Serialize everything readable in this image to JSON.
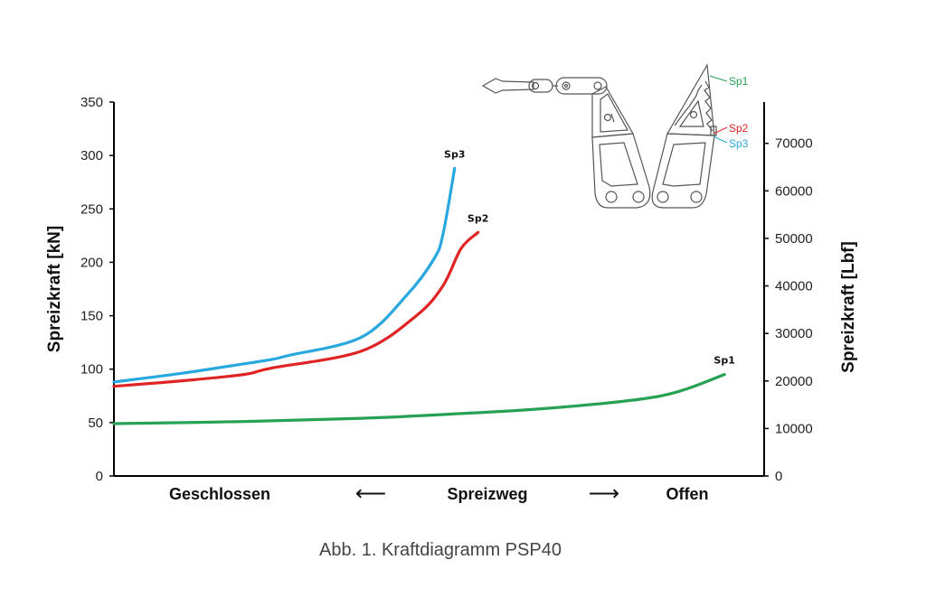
{
  "chart_data": {
    "type": "line",
    "title": "",
    "caption": "Abb. 1. Kraftdiagramm PSP40",
    "xlabel": "Spreizweg",
    "x_left_label": "Geschlossen",
    "x_right_label": "Offen",
    "x_arrow_left": "⟵",
    "x_arrow_right": "⟶",
    "x_scale_note": "normalized spreading path (0 = closed, 100 = open), no numeric ticks shown",
    "xlim": [
      0,
      100
    ],
    "ylabel": "Spreizkraft [kN]",
    "ylim": [
      0,
      350
    ],
    "yticks": [
      0,
      50,
      100,
      150,
      200,
      250,
      300,
      350
    ],
    "y2label": "Spreizkraft [Lbf]",
    "y2lim": [
      0,
      78683
    ],
    "y2ticks": [
      0,
      10000,
      20000,
      30000,
      40000,
      50000,
      60000,
      70000
    ],
    "y2_per_y": 224.809,
    "grid": false,
    "legend": "inline labels at curve ends",
    "series": [
      {
        "name": "Sp3",
        "color": "#29a8e0",
        "points": [
          [
            0,
            88
          ],
          [
            10.3,
            96
          ],
          [
            20,
            105
          ],
          [
            24.2,
            109
          ],
          [
            27,
            113
          ],
          [
            38.1,
            130
          ],
          [
            45,
            169
          ],
          [
            49.2,
            203
          ],
          [
            50.6,
            226
          ],
          [
            52.4,
            288
          ]
        ]
      },
      {
        "name": "Sp2",
        "color": "#e02424",
        "points": [
          [
            0,
            84
          ],
          [
            10.3,
            89
          ],
          [
            20,
            95
          ],
          [
            24.2,
            101
          ],
          [
            38.1,
            117
          ],
          [
            46.5,
            150
          ],
          [
            50.6,
            178
          ],
          [
            53.4,
            213
          ],
          [
            56,
            228
          ]
        ]
      },
      {
        "name": "Sp1",
        "color": "#27a153",
        "points": [
          [
            0,
            49
          ],
          [
            20,
            51
          ],
          [
            38.1,
            54
          ],
          [
            52,
            58
          ],
          [
            65.9,
            63
          ],
          [
            79.8,
            71
          ],
          [
            86.8,
            79
          ],
          [
            93.9,
            95
          ]
        ]
      }
    ]
  },
  "tool_illustration": {
    "description": "spreader tool arms line drawing with tip markers",
    "labels": [
      {
        "name": "Sp1",
        "color": "#27a153"
      },
      {
        "name": "Sp2",
        "color": "#e02424"
      },
      {
        "name": "Sp3",
        "color": "#29a8e0"
      }
    ]
  }
}
